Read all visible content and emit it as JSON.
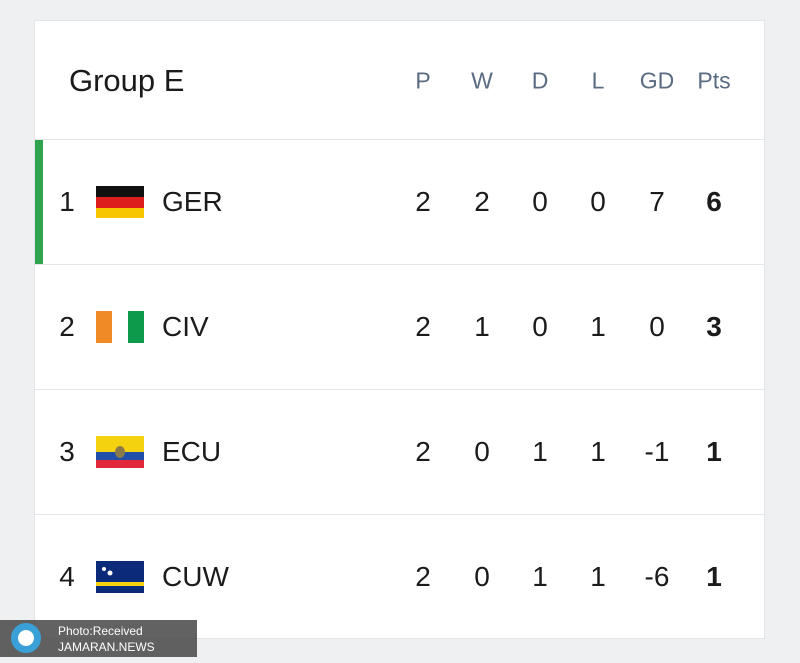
{
  "header": {
    "title": "Group E",
    "columns": [
      "P",
      "W",
      "D",
      "L",
      "GD",
      "Pts"
    ]
  },
  "table": {
    "rows": [
      [
        "1",
        "GER",
        2,
        2,
        0,
        0,
        7,
        6
      ],
      [
        "2",
        "CIV",
        2,
        1,
        0,
        1,
        0,
        3
      ],
      [
        "3",
        "ECU",
        2,
        0,
        1,
        1,
        -1,
        1
      ],
      [
        "4",
        "CUW",
        2,
        0,
        1,
        1,
        -6,
        1
      ]
    ]
  },
  "watermark": {
    "line1": "Photo:Received",
    "line2": "JAMARAN.NEWS"
  }
}
